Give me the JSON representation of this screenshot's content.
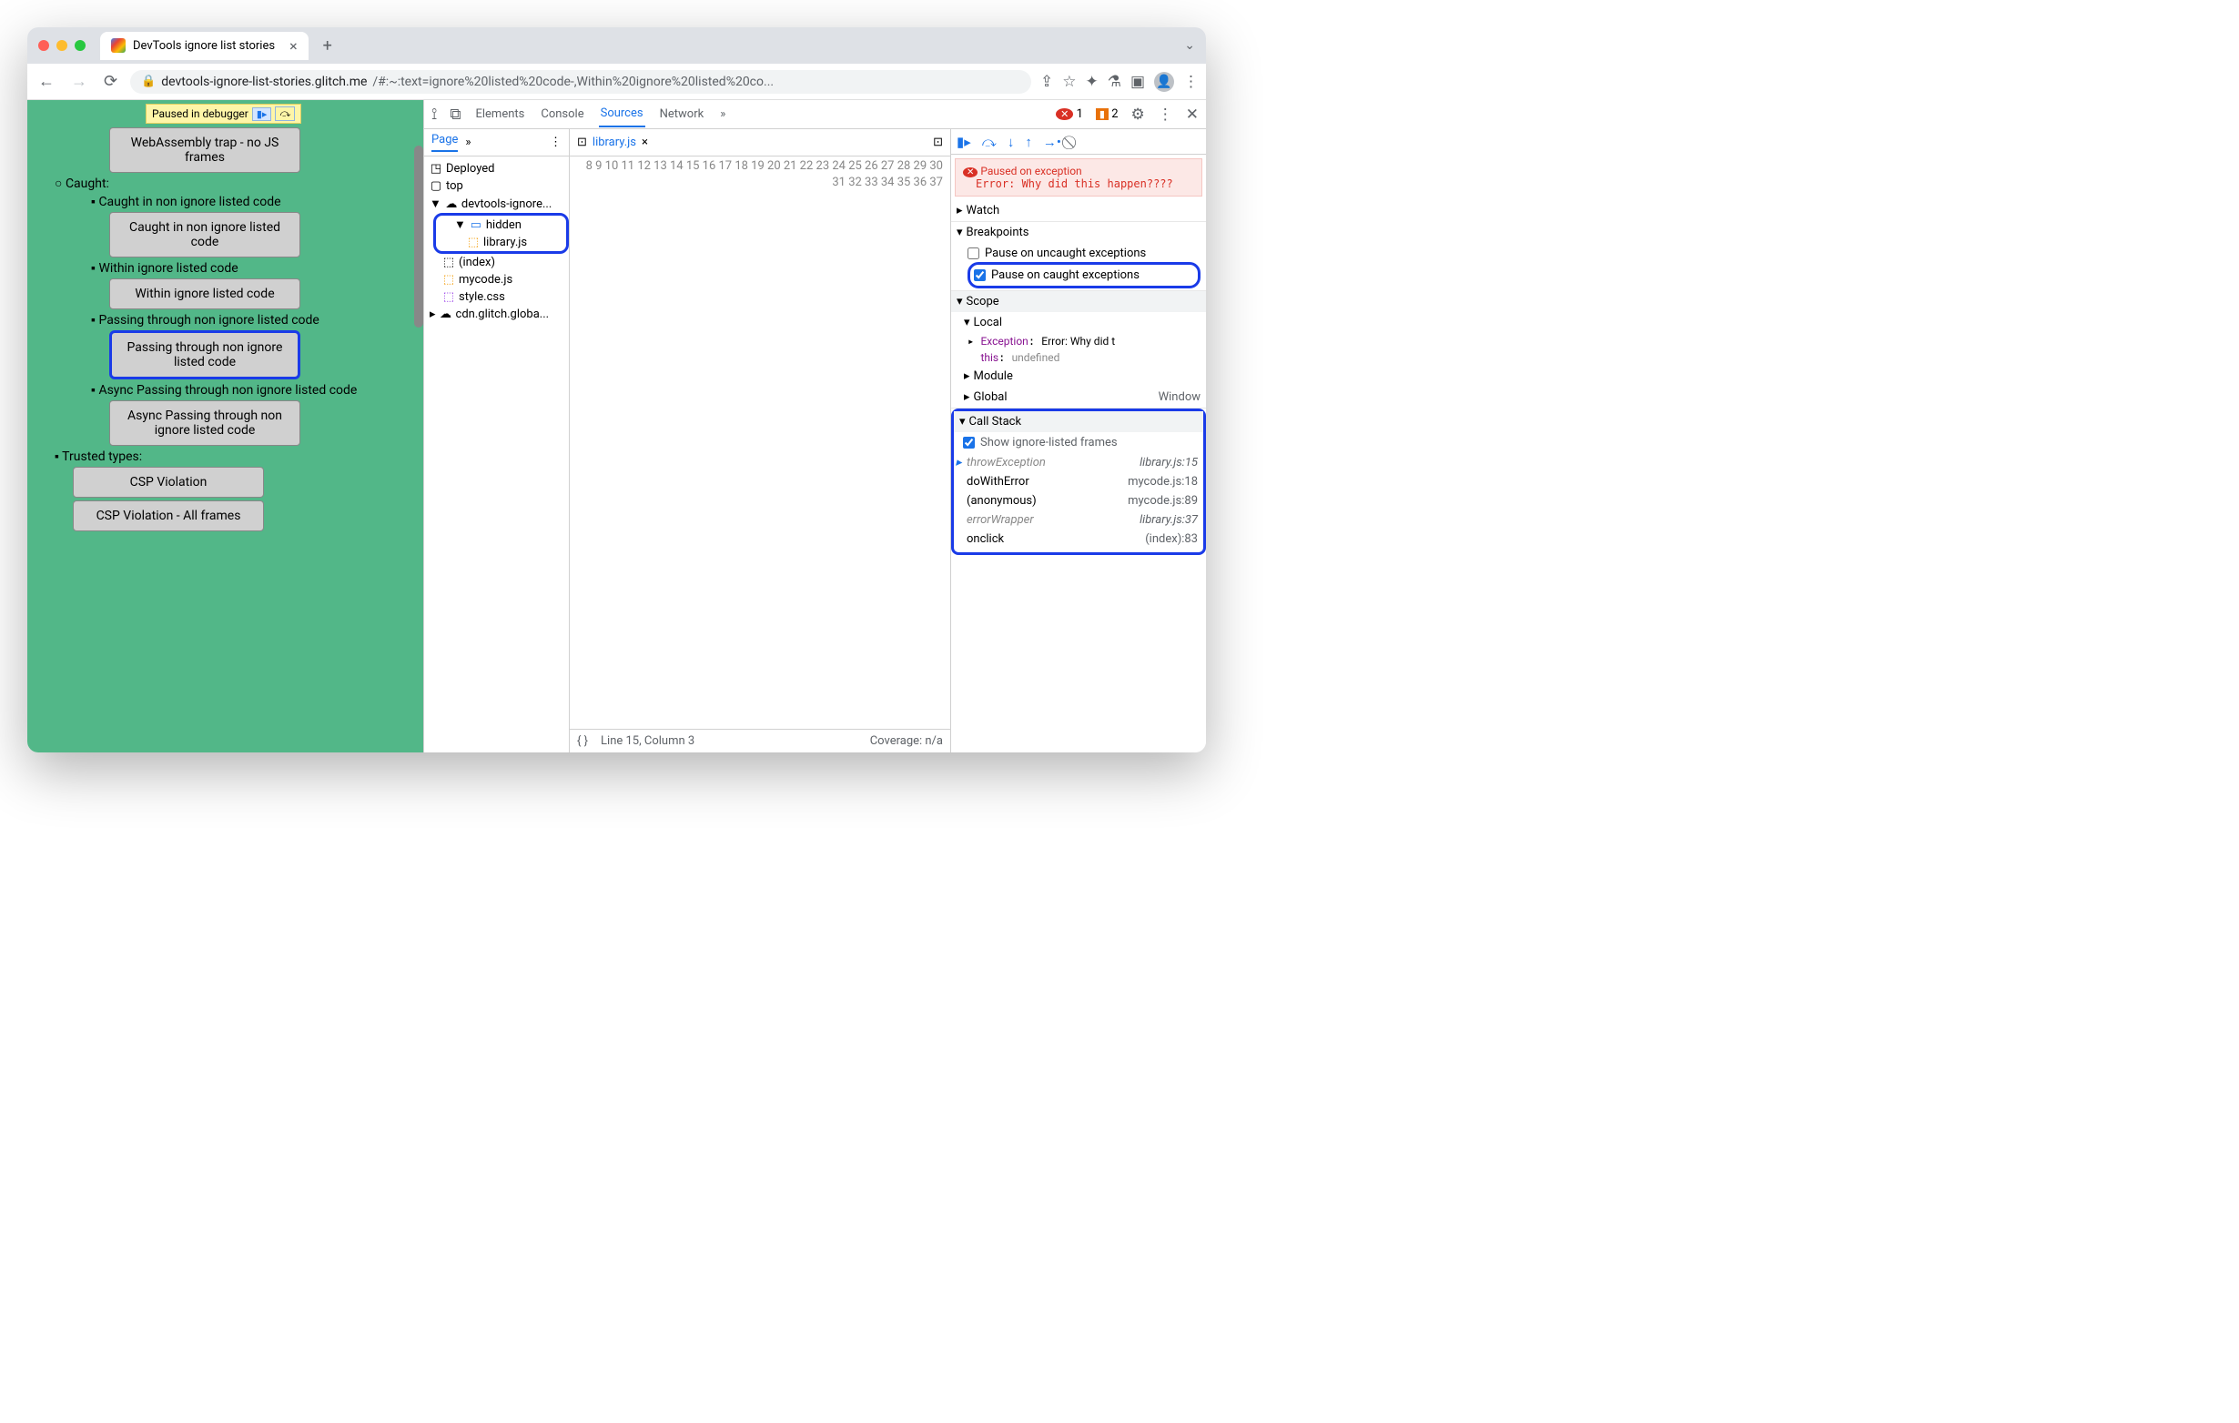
{
  "browser": {
    "tab_title": "DevTools ignore list stories",
    "url_host": "devtools-ignore-list-stories.glitch.me",
    "url_path": "/#:~:text=ignore%20listed%20code-,Within%20ignore%20listed%20co..."
  },
  "page": {
    "paused_label": "Paused in debugger",
    "items": {
      "wasm": "WebAssembly trap - no JS frames",
      "caught": "Caught:",
      "caught_non": "Caught in non ignore listed code",
      "btn_caught": "Caught in non ignore listed code",
      "within": "Within ignore listed code",
      "btn_within": "Within ignore listed code",
      "passing": "Passing through non ignore listed code",
      "btn_passing": "Passing through non ignore listed code",
      "async": "Async Passing through non ignore listed code",
      "btn_async": "Async Passing through non ignore listed code",
      "trusted": "Trusted types:",
      "csp": "CSP Violation",
      "csp_all": "CSP Violation - All frames"
    }
  },
  "devtools": {
    "tabs": [
      "Elements",
      "Console",
      "Sources",
      "Network"
    ],
    "active_tab": "Sources",
    "errors": "1",
    "issues": "2",
    "nav": {
      "page": "Page",
      "deployed": "Deployed",
      "top": "top",
      "domain": "devtools-ignore...",
      "hidden": "hidden",
      "lib": "library.js",
      "index": "(index)",
      "mycode": "mycode.js",
      "style": "style.css",
      "cdn": "cdn.glitch.globa..."
    },
    "editor": {
      "file": "library.js",
      "status_line": "Line 15, Column 3",
      "coverage": "Coverage: n/a",
      "gutter_start": 8,
      "gutter_end": 37
    },
    "debugger": {
      "exception_title": "Paused on exception",
      "exception_msg": "Error: Why did this happen????",
      "watch": "Watch",
      "breakpoints": "Breakpoints",
      "uncaught": "Pause on uncaught exceptions",
      "caught": "Pause on caught exceptions",
      "scope": "Scope",
      "local": "Local",
      "exception_var": "Exception",
      "exception_val": "Error: Why did t",
      "this": "this",
      "this_val": "undefined",
      "module": "Module",
      "global": "Global",
      "window": "Window",
      "callstack": "Call Stack",
      "show_ignored": "Show ignore-listed frames",
      "frames": [
        {
          "fn": "throwException",
          "loc": "library.js:15",
          "ignored": true,
          "current": true
        },
        {
          "fn": "doWithError",
          "loc": "mycode.js:18",
          "ignored": false
        },
        {
          "fn": "(anonymous)",
          "loc": "mycode.js:89",
          "ignored": false
        },
        {
          "fn": "errorWrapper",
          "loc": "library.js:37",
          "ignored": true
        },
        {
          "fn": "onclick",
          "loc": "(index):83",
          "ignored": false
        }
      ]
    }
  }
}
